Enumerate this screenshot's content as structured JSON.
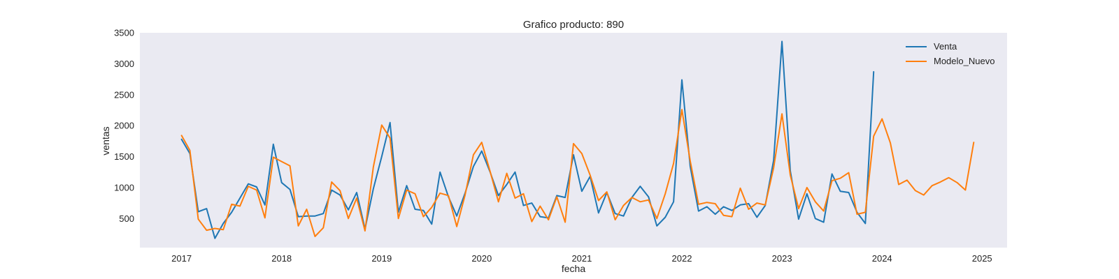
{
  "chart_data": {
    "type": "line",
    "title": "Grafico producto: 890",
    "xlabel": "fecha",
    "ylabel": "ventas",
    "x_ticks": [
      "2017",
      "2018",
      "2019",
      "2020",
      "2021",
      "2022",
      "2023",
      "2024",
      "2025"
    ],
    "y_ticks": [
      "500",
      "1000",
      "1500",
      "2000",
      "2500",
      "3000",
      "3500"
    ],
    "xlim": [
      "2016-08",
      "2025-04"
    ],
    "ylim": [
      30,
      3500
    ],
    "grid": false,
    "background_color": "#eaeaf2",
    "legend_position": "top-right",
    "series": [
      {
        "name": "Venta",
        "color": "#1f77b4",
        "x": [
          "2017-01",
          "2017-02",
          "2017-03",
          "2017-04",
          "2017-05",
          "2017-06",
          "2017-07",
          "2017-08",
          "2017-09",
          "2017-10",
          "2017-11",
          "2017-12",
          "2018-01",
          "2018-02",
          "2018-03",
          "2018-04",
          "2018-05",
          "2018-06",
          "2018-07",
          "2018-08",
          "2018-09",
          "2018-10",
          "2018-11",
          "2018-12",
          "2019-01",
          "2019-02",
          "2019-03",
          "2019-04",
          "2019-05",
          "2019-06",
          "2019-07",
          "2019-08",
          "2019-09",
          "2019-10",
          "2019-11",
          "2019-12",
          "2020-01",
          "2020-02",
          "2020-03",
          "2020-04",
          "2020-05",
          "2020-06",
          "2020-07",
          "2020-08",
          "2020-09",
          "2020-10",
          "2020-11",
          "2020-12",
          "2021-01",
          "2021-02",
          "2021-03",
          "2021-04",
          "2021-05",
          "2021-06",
          "2021-07",
          "2021-08",
          "2021-09",
          "2021-10",
          "2021-11",
          "2021-12",
          "2022-01",
          "2022-02",
          "2022-03",
          "2022-04",
          "2022-05",
          "2022-06",
          "2022-07",
          "2022-08",
          "2022-09",
          "2022-10",
          "2022-11",
          "2022-12",
          "2023-01",
          "2023-02",
          "2023-03",
          "2023-04",
          "2023-05",
          "2023-06",
          "2023-07",
          "2023-08",
          "2023-09",
          "2023-10",
          "2023-11",
          "2023-12"
        ],
        "y": [
          1780,
          1550,
          610,
          660,
          180,
          420,
          600,
          830,
          1060,
          1010,
          720,
          1700,
          1080,
          970,
          530,
          540,
          540,
          580,
          960,
          880,
          640,
          920,
          330,
          980,
          1500,
          2050,
          600,
          1030,
          650,
          630,
          410,
          1250,
          850,
          540,
          910,
          1340,
          1590,
          1250,
          870,
          1050,
          1250,
          710,
          750,
          530,
          510,
          870,
          840,
          1530,
          940,
          1180,
          590,
          920,
          580,
          540,
          840,
          1020,
          850,
          380,
          520,
          770,
          2740,
          1340,
          620,
          690,
          570,
          690,
          630,
          720,
          740,
          520,
          710,
          1440,
          3360,
          1270,
          490,
          900,
          500,
          440,
          1220,
          940,
          920,
          600,
          420,
          2870
        ]
      },
      {
        "name": "Modelo_Nuevo",
        "color": "#ff7f0e",
        "x": [
          "2017-01",
          "2017-02",
          "2017-03",
          "2017-04",
          "2017-05",
          "2017-06",
          "2017-07",
          "2017-08",
          "2017-09",
          "2017-10",
          "2017-11",
          "2017-12",
          "2018-01",
          "2018-02",
          "2018-03",
          "2018-04",
          "2018-05",
          "2018-06",
          "2018-07",
          "2018-08",
          "2018-09",
          "2018-10",
          "2018-11",
          "2018-12",
          "2019-01",
          "2019-02",
          "2019-03",
          "2019-04",
          "2019-05",
          "2019-06",
          "2019-07",
          "2019-08",
          "2019-09",
          "2019-10",
          "2019-11",
          "2019-12",
          "2020-01",
          "2020-02",
          "2020-03",
          "2020-04",
          "2020-05",
          "2020-06",
          "2020-07",
          "2020-08",
          "2020-09",
          "2020-10",
          "2020-11",
          "2020-12",
          "2021-01",
          "2021-02",
          "2021-03",
          "2021-04",
          "2021-05",
          "2021-06",
          "2021-07",
          "2021-08",
          "2021-09",
          "2021-10",
          "2021-11",
          "2021-12",
          "2022-01",
          "2022-02",
          "2022-03",
          "2022-04",
          "2022-05",
          "2022-06",
          "2022-07",
          "2022-08",
          "2022-09",
          "2022-10",
          "2022-11",
          "2022-12",
          "2023-01",
          "2023-02",
          "2023-03",
          "2023-04",
          "2023-05",
          "2023-06",
          "2023-07",
          "2023-08",
          "2023-09",
          "2023-10",
          "2023-11",
          "2023-12",
          "2024-01",
          "2024-02",
          "2024-03",
          "2024-04",
          "2024-05",
          "2024-06",
          "2024-07",
          "2024-08",
          "2024-09",
          "2024-10",
          "2024-11",
          "2024-12"
        ],
        "y": [
          1840,
          1600,
          490,
          310,
          340,
          320,
          730,
          700,
          1020,
          960,
          510,
          1490,
          1420,
          1350,
          380,
          650,
          210,
          350,
          1090,
          950,
          500,
          830,
          300,
          1330,
          2010,
          1800,
          500,
          960,
          900,
          530,
          680,
          910,
          870,
          370,
          880,
          1530,
          1730,
          1260,
          770,
          1230,
          830,
          900,
          450,
          700,
          480,
          850,
          440,
          1710,
          1550,
          1200,
          790,
          930,
          480,
          710,
          840,
          770,
          800,
          500,
          900,
          1390,
          2260,
          1430,
          730,
          760,
          740,
          550,
          530,
          990,
          650,
          750,
          720,
          1320,
          2190,
          1200,
          660,
          1000,
          770,
          620,
          1110,
          1150,
          1240,
          570,
          600,
          1830,
          2110,
          1720,
          1050,
          1120,
          950,
          880,
          1030,
          1090,
          1160,
          1080,
          960,
          1730
        ]
      }
    ]
  }
}
